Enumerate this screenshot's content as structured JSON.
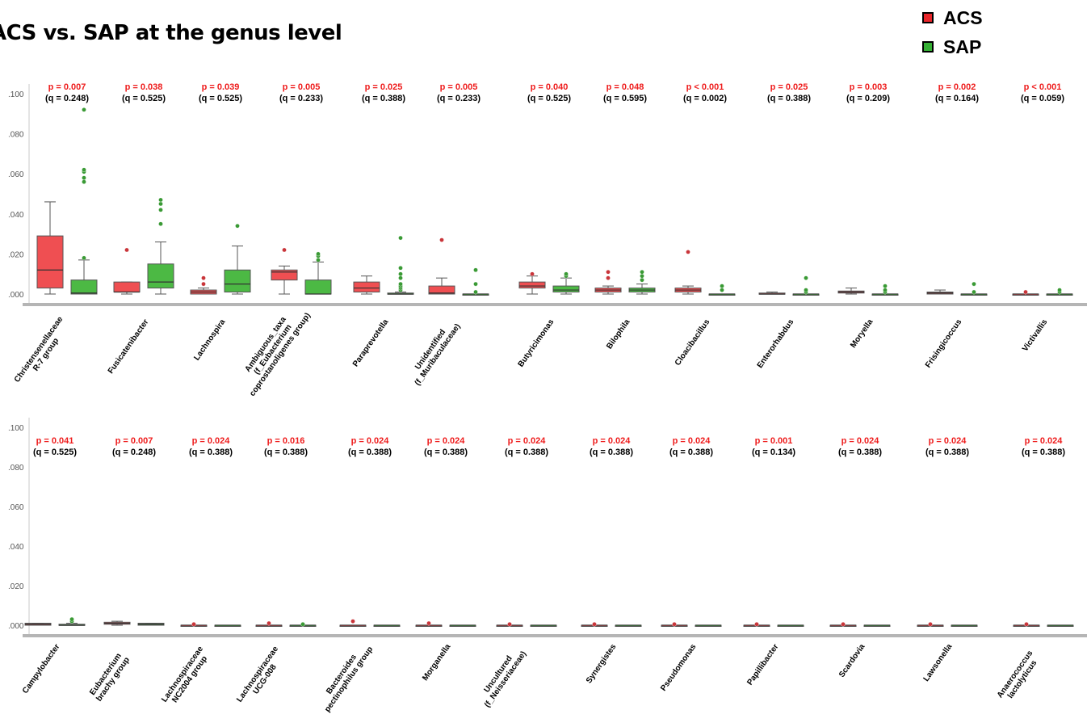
{
  "title": "ACS vs. SAP at the genus level",
  "legend": [
    {
      "label": "ACS",
      "color": "#e8262b"
    },
    {
      "label": "SAP",
      "color": "#35b034"
    }
  ],
  "colors": {
    "acs_box": "#ef4f52",
    "sap_box": "#4cb944",
    "acs_outlier": "#c9353a",
    "sap_outlier": "#3a9a35"
  },
  "chart_data": [
    {
      "type": "box",
      "panel": "top",
      "ylim": [
        0,
        0.1
      ],
      "y_ticks": [
        0,
        0.02,
        0.04,
        0.06,
        0.08,
        0.1
      ],
      "y_tick_labels": [
        ".000",
        ".020",
        ".040",
        ".060",
        ".080",
        ".100"
      ],
      "categories": [
        {
          "name": [
            "Christensenellaceae",
            "R-7 group"
          ],
          "p": "p = 0.007",
          "q": "(q = 0.248)",
          "ACS": {
            "min": 0.0,
            "q1": 0.003,
            "median": 0.012,
            "q3": 0.029,
            "max": 0.046,
            "outliers": []
          },
          "SAP": {
            "min": 0.0,
            "q1": 0.0,
            "median": 0.0005,
            "q3": 0.007,
            "max": 0.017,
            "outliers": [
              0.018,
              0.056,
              0.058,
              0.061,
              0.062,
              0.092
            ]
          }
        },
        {
          "name": [
            "Fusicatenibacter"
          ],
          "p": "p = 0.038",
          "q": "(q = 0.525)",
          "ACS": {
            "min": 0.0,
            "q1": 0.001,
            "median": 0.001,
            "q3": 0.006,
            "max": 0.006,
            "outliers": [
              0.022
            ]
          },
          "SAP": {
            "min": 0.0,
            "q1": 0.003,
            "median": 0.006,
            "q3": 0.015,
            "max": 0.026,
            "outliers": [
              0.035,
              0.042,
              0.045,
              0.047
            ]
          }
        },
        {
          "name": [
            "Lachnospira"
          ],
          "p": "p = 0.039",
          "q": "(q = 0.525)",
          "ACS": {
            "min": 0.0,
            "q1": 0.0,
            "median": 0.001,
            "q3": 0.002,
            "max": 0.003,
            "outliers": [
              0.005,
              0.008
            ]
          },
          "SAP": {
            "min": 0.0,
            "q1": 0.001,
            "median": 0.005,
            "q3": 0.012,
            "max": 0.024,
            "outliers": [
              0.034
            ]
          }
        },
        {
          "name": [
            "Ambiguous_taxa",
            "(f_Eubacterium",
            "coprostanoligenes group)"
          ],
          "p": "p = 0.005",
          "q": "(q = 0.233)",
          "ACS": {
            "min": 0.0,
            "q1": 0.007,
            "median": 0.011,
            "q3": 0.012,
            "max": 0.014,
            "outliers": [
              0.022
            ]
          },
          "SAP": {
            "min": 0.0,
            "q1": 0.0,
            "median": 0.0,
            "q3": 0.007,
            "max": 0.016,
            "outliers": [
              0.017,
              0.019,
              0.02
            ]
          }
        },
        {
          "name": [
            "Paraprevotella"
          ],
          "p": "p = 0.025",
          "q": "(q = 0.388)",
          "ACS": {
            "min": 0.0,
            "q1": 0.001,
            "median": 0.003,
            "q3": 0.006,
            "max": 0.009,
            "outliers": []
          },
          "SAP": {
            "min": 0.0,
            "q1": 0.0,
            "median": 0.0,
            "q3": 0.0005,
            "max": 0.001,
            "outliers": [
              0.002,
              0.003,
              0.004,
              0.005,
              0.008,
              0.01,
              0.013,
              0.028
            ]
          }
        },
        {
          "name": [
            "Unidentified",
            "(f_Muribaculaceae)"
          ],
          "p": "p = 0.005",
          "q": "(q = 0.233)",
          "ACS": {
            "min": 0.0,
            "q1": 0.0,
            "median": 0.0005,
            "q3": 0.004,
            "max": 0.008,
            "outliers": [
              0.027
            ]
          },
          "SAP": {
            "min": 0.0,
            "q1": 0.0,
            "median": 0.0,
            "q3": 0.0,
            "max": 0.0,
            "outliers": [
              0.001,
              0.005,
              0.012
            ]
          }
        },
        {
          "name": [
            "Butyricimonas"
          ],
          "p": "p = 0.040",
          "q": "(q = 0.525)",
          "ACS": {
            "min": 0.0,
            "q1": 0.003,
            "median": 0.004,
            "q3": 0.006,
            "max": 0.009,
            "outliers": [
              0.01
            ]
          },
          "SAP": {
            "min": 0.0,
            "q1": 0.001,
            "median": 0.002,
            "q3": 0.004,
            "max": 0.008,
            "outliers": [
              0.009,
              0.01
            ]
          }
        },
        {
          "name": [
            "Bilophila"
          ],
          "p": "p = 0.048",
          "q": "(q = 0.595)",
          "ACS": {
            "min": 0.0,
            "q1": 0.001,
            "median": 0.002,
            "q3": 0.003,
            "max": 0.004,
            "outliers": [
              0.008,
              0.011
            ]
          },
          "SAP": {
            "min": 0.0,
            "q1": 0.001,
            "median": 0.002,
            "q3": 0.003,
            "max": 0.005,
            "outliers": [
              0.007,
              0.009,
              0.011
            ]
          }
        },
        {
          "name": [
            "Cloacibacillus"
          ],
          "p": "p < 0.001",
          "q": "(q = 0.002)",
          "ACS": {
            "min": 0.0,
            "q1": 0.001,
            "median": 0.002,
            "q3": 0.003,
            "max": 0.004,
            "outliers": [
              0.021
            ]
          },
          "SAP": {
            "min": 0.0,
            "q1": 0.0,
            "median": 0.0,
            "q3": 0.0,
            "max": 0.0,
            "outliers": [
              0.002,
              0.004
            ]
          }
        },
        {
          "name": [
            "Enterorhabdus"
          ],
          "p": "p = 0.025",
          "q": "(q = 0.388)",
          "ACS": {
            "min": 0.0,
            "q1": 0.0,
            "median": 0.0,
            "q3": 0.0005,
            "max": 0.001,
            "outliers": []
          },
          "SAP": {
            "min": 0.0,
            "q1": 0.0,
            "median": 0.0,
            "q3": 0.0,
            "max": 0.0,
            "outliers": [
              0.001,
              0.002,
              0.008
            ]
          }
        },
        {
          "name": [
            "Moryella"
          ],
          "p": "p = 0.003",
          "q": "(q = 0.209)",
          "ACS": {
            "min": 0.0,
            "q1": 0.0005,
            "median": 0.001,
            "q3": 0.0015,
            "max": 0.003,
            "outliers": []
          },
          "SAP": {
            "min": 0.0,
            "q1": 0.0,
            "median": 0.0,
            "q3": 0.0,
            "max": 0.0,
            "outliers": [
              0.001,
              0.002,
              0.004
            ]
          }
        },
        {
          "name": [
            "Frisingicoccus"
          ],
          "p": "p = 0.002",
          "q": "(q = 0.164)",
          "ACS": {
            "min": 0.0,
            "q1": 0.0,
            "median": 0.0005,
            "q3": 0.001,
            "max": 0.002,
            "outliers": []
          },
          "SAP": {
            "min": 0.0,
            "q1": 0.0,
            "median": 0.0,
            "q3": 0.0,
            "max": 0.0,
            "outliers": [
              0.001,
              0.005
            ]
          }
        },
        {
          "name": [
            "Victivallis"
          ],
          "p": "p < 0.001",
          "q": "(q = 0.059)",
          "ACS": {
            "min": 0.0,
            "q1": 0.0,
            "median": 0.0,
            "q3": 0.0,
            "max": 0.0,
            "outliers": [
              0.001
            ]
          },
          "SAP": {
            "min": 0.0,
            "q1": 0.0,
            "median": 0.0,
            "q3": 0.0,
            "max": 0.0,
            "outliers": [
              0.001,
              0.002
            ]
          }
        }
      ]
    },
    {
      "type": "box",
      "panel": "bottom",
      "ylim": [
        0,
        0.1
      ],
      "y_ticks": [
        0,
        0.02,
        0.04,
        0.06,
        0.08,
        0.1
      ],
      "y_tick_labels": [
        ".000",
        ".020",
        ".040",
        ".060",
        ".080",
        ".100"
      ],
      "categories": [
        {
          "name": [
            "Campylobacter"
          ],
          "p": "p = 0.041",
          "q": "(q = 0.525)",
          "ACS": {
            "min": 0.0,
            "q1": 0.0,
            "median": 0.0005,
            "q3": 0.001,
            "max": 0.001,
            "outliers": []
          },
          "SAP": {
            "min": 0.0,
            "q1": 0.0,
            "median": 0.0,
            "q3": 0.0005,
            "max": 0.001,
            "outliers": [
              0.002,
              0.003
            ]
          }
        },
        {
          "name": [
            "Eubacterium",
            "brachy group"
          ],
          "p": "p = 0.007",
          "q": "(q = 0.248)",
          "ACS": {
            "min": 0.0,
            "q1": 0.0005,
            "median": 0.001,
            "q3": 0.0015,
            "max": 0.002,
            "outliers": []
          },
          "SAP": {
            "min": 0.0,
            "q1": 0.0,
            "median": 0.0005,
            "q3": 0.001,
            "max": 0.001,
            "outliers": []
          }
        },
        {
          "name": [
            "Lachnospiraceae",
            "NC2004 group"
          ],
          "p": "p = 0.024",
          "q": "(q = 0.388)",
          "ACS": {
            "min": 0.0,
            "q1": 0.0,
            "median": 0.0,
            "q3": 0.0,
            "max": 0.0,
            "outliers": [
              0.0005
            ]
          },
          "SAP": {
            "min": 0.0,
            "q1": 0.0,
            "median": 0.0,
            "q3": 0.0,
            "max": 0.0,
            "outliers": []
          }
        },
        {
          "name": [
            "Lachnospiraceae",
            "UCG-008"
          ],
          "p": "p = 0.016",
          "q": "(q = 0.388)",
          "ACS": {
            "min": 0.0,
            "q1": 0.0,
            "median": 0.0,
            "q3": 0.0,
            "max": 0.0,
            "outliers": [
              0.001
            ]
          },
          "SAP": {
            "min": 0.0,
            "q1": 0.0,
            "median": 0.0,
            "q3": 0.0,
            "max": 0.0,
            "outliers": [
              0.0005
            ]
          }
        },
        {
          "name": [
            "Bacteroides",
            "pectinophilus group"
          ],
          "p": "p = 0.024",
          "q": "(q = 0.388)",
          "ACS": {
            "min": 0.0,
            "q1": 0.0,
            "median": 0.0,
            "q3": 0.0,
            "max": 0.0,
            "outliers": [
              0.002
            ]
          },
          "SAP": {
            "min": 0.0,
            "q1": 0.0,
            "median": 0.0,
            "q3": 0.0,
            "max": 0.0,
            "outliers": []
          }
        },
        {
          "name": [
            "Morganella"
          ],
          "p": "p = 0.024",
          "q": "(q = 0.388)",
          "ACS": {
            "min": 0.0,
            "q1": 0.0,
            "median": 0.0,
            "q3": 0.0,
            "max": 0.0,
            "outliers": [
              0.001
            ]
          },
          "SAP": {
            "min": 0.0,
            "q1": 0.0,
            "median": 0.0,
            "q3": 0.0,
            "max": 0.0,
            "outliers": []
          }
        },
        {
          "name": [
            "Uncultured",
            "(f_Neisseriaceae)"
          ],
          "p": "p = 0.024",
          "q": "(q = 0.388)",
          "ACS": {
            "min": 0.0,
            "q1": 0.0,
            "median": 0.0,
            "q3": 0.0,
            "max": 0.0,
            "outliers": [
              0.0005
            ]
          },
          "SAP": {
            "min": 0.0,
            "q1": 0.0,
            "median": 0.0,
            "q3": 0.0,
            "max": 0.0,
            "outliers": []
          }
        },
        {
          "name": [
            "Synergistes"
          ],
          "p": "p = 0.024",
          "q": "(q = 0.388)",
          "ACS": {
            "min": 0.0,
            "q1": 0.0,
            "median": 0.0,
            "q3": 0.0,
            "max": 0.0,
            "outliers": [
              0.0005
            ]
          },
          "SAP": {
            "min": 0.0,
            "q1": 0.0,
            "median": 0.0,
            "q3": 0.0,
            "max": 0.0,
            "outliers": []
          }
        },
        {
          "name": [
            "Pseudomonas"
          ],
          "p": "p = 0.024",
          "q": "(q = 0.388)",
          "ACS": {
            "min": 0.0,
            "q1": 0.0,
            "median": 0.0,
            "q3": 0.0,
            "max": 0.0,
            "outliers": [
              0.0005
            ]
          },
          "SAP": {
            "min": 0.0,
            "q1": 0.0,
            "median": 0.0,
            "q3": 0.0,
            "max": 0.0,
            "outliers": []
          }
        },
        {
          "name": [
            "Papillibacter"
          ],
          "p": "p = 0.001",
          "q": "(q = 0.134)",
          "ACS": {
            "min": 0.0,
            "q1": 0.0,
            "median": 0.0,
            "q3": 0.0,
            "max": 0.0,
            "outliers": [
              0.0005
            ]
          },
          "SAP": {
            "min": 0.0,
            "q1": 0.0,
            "median": 0.0,
            "q3": 0.0,
            "max": 0.0,
            "outliers": []
          }
        },
        {
          "name": [
            "Scardovia"
          ],
          "p": "p = 0.024",
          "q": "(q = 0.388)",
          "ACS": {
            "min": 0.0,
            "q1": 0.0,
            "median": 0.0,
            "q3": 0.0,
            "max": 0.0,
            "outliers": [
              0.0005
            ]
          },
          "SAP": {
            "min": 0.0,
            "q1": 0.0,
            "median": 0.0,
            "q3": 0.0,
            "max": 0.0,
            "outliers": []
          }
        },
        {
          "name": [
            "Lawsonella"
          ],
          "p": "p = 0.024",
          "q": "(q = 0.388)",
          "ACS": {
            "min": 0.0,
            "q1": 0.0,
            "median": 0.0,
            "q3": 0.0,
            "max": 0.0,
            "outliers": [
              0.0005
            ]
          },
          "SAP": {
            "min": 0.0,
            "q1": 0.0,
            "median": 0.0,
            "q3": 0.0,
            "max": 0.0,
            "outliers": []
          }
        },
        {
          "name": [
            "Anaerococcus",
            "lactolyticus"
          ],
          "p": "p = 0.024",
          "q": "(q = 0.388)",
          "ACS": {
            "min": 0.0,
            "q1": 0.0,
            "median": 0.0,
            "q3": 0.0,
            "max": 0.0,
            "outliers": [
              0.0005
            ]
          },
          "SAP": {
            "min": 0.0,
            "q1": 0.0,
            "median": 0.0,
            "q3": 0.0,
            "max": 0.0,
            "outliers": []
          }
        }
      ]
    }
  ]
}
